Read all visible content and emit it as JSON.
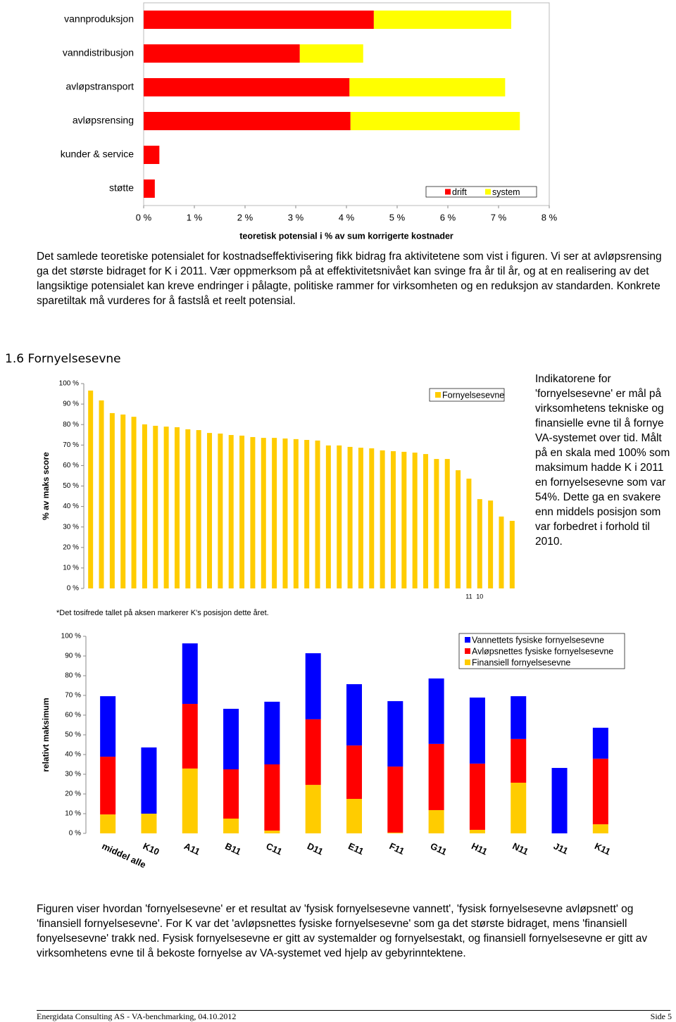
{
  "chart_data": [
    {
      "type": "hbar",
      "categories": [
        "vannproduksjon",
        "vanndistribusjon",
        "avløpstransport",
        "avløpsrensing",
        "kunder & service",
        "støtte"
      ],
      "series": [
        {
          "name": "drift",
          "color": "#ff0000",
          "values": [
            4.54,
            3.08,
            4.06,
            4.08,
            0.31,
            0.22
          ]
        },
        {
          "name": "system",
          "color": "#ffff00",
          "values": [
            2.71,
            1.25,
            3.07,
            3.34,
            0,
            0
          ]
        }
      ],
      "xlim": [
        0,
        8
      ],
      "xticks": [
        {
          "value": 0,
          "label": "0 %"
        },
        {
          "value": 1,
          "label": "1 %"
        },
        {
          "value": 2,
          "label": "2 %"
        },
        {
          "value": 3,
          "label": "3 %"
        },
        {
          "value": 4,
          "label": "4 %"
        },
        {
          "value": 5,
          "label": "5 %"
        },
        {
          "value": 6,
          "label": "6 %"
        },
        {
          "value": 7,
          "label": "7 %"
        },
        {
          "value": 8,
          "label": "8 %"
        }
      ],
      "xlabel": "teoretisk potensial i % av sum korrigerte kostnader",
      "legend": "lower right"
    },
    {
      "type": "bar",
      "categories": [
        null,
        null,
        null,
        null,
        null,
        null,
        null,
        null,
        null,
        null,
        null,
        null,
        null,
        null,
        null,
        null,
        null,
        null,
        null,
        null,
        null,
        null,
        null,
        null,
        null,
        null,
        null,
        null,
        null,
        null,
        null,
        null,
        null,
        null,
        null,
        "11",
        "10",
        null,
        null,
        null
      ],
      "series": [
        {
          "name": "Fornyelsesevne",
          "color": "#ffcc00",
          "values": [
            96.6,
            91.8,
            85.6,
            84.9,
            83.8,
            80.1,
            79.4,
            79.0,
            78.7,
            77.7,
            77.3,
            75.9,
            75.6,
            74.9,
            74.6,
            73.9,
            73.5,
            73.5,
            73.2,
            72.9,
            72.5,
            72.2,
            69.8,
            69.8,
            69.1,
            68.7,
            68.4,
            67.4,
            67.0,
            66.7,
            66.3,
            65.6,
            63.2,
            63.2,
            57.7,
            53.6,
            43.6,
            42.9,
            35.1,
            33.0
          ]
        }
      ],
      "ylim": [
        0,
        100
      ],
      "yticks": [
        {
          "value": 0,
          "label": "0 %"
        },
        {
          "value": 10,
          "label": "10 %"
        },
        {
          "value": 20,
          "label": "20 %"
        },
        {
          "value": 30,
          "label": "30 %"
        },
        {
          "value": 40,
          "label": "40 %"
        },
        {
          "value": 50,
          "label": "50 %"
        },
        {
          "value": 60,
          "label": "60 %"
        },
        {
          "value": 70,
          "label": "70 %"
        },
        {
          "value": 80,
          "label": "80 %"
        },
        {
          "value": 90,
          "label": "90 %"
        },
        {
          "value": 100,
          "label": "100 %"
        }
      ],
      "ylabel": "% av maks score",
      "note": "*Det tosifrede tallet på aksen markerer K's posisjon dette året.",
      "legend": "upper right"
    },
    {
      "type": "stackedbar",
      "categories": [
        "middel alle",
        "K10",
        "A11",
        "B11",
        "C11",
        "D11",
        "E11",
        "F11",
        "G11",
        "H11",
        "N11",
        "J11",
        "K11"
      ],
      "series": [
        {
          "name": "Finansiell fornyelsesevne",
          "color": "#ffcc00",
          "values": [
            9.6,
            10.0,
            32.9,
            7.5,
            1.4,
            24.6,
            17.5,
            0.4,
            11.8,
            1.8,
            25.7,
            0,
            4.6
          ]
        },
        {
          "name": "Avløpsnettes fysiske fornyelsesevne",
          "color": "#ff0000",
          "values": [
            29.3,
            0,
            32.8,
            25.0,
            33.6,
            33.3,
            27.1,
            33.5,
            33.6,
            33.6,
            22.2,
            0,
            33.3
          ]
        },
        {
          "name": "Vannettets fysiske fornyelsesevne",
          "color": "#0000ff",
          "values": [
            30.7,
            33.6,
            30.7,
            30.7,
            31.8,
            33.5,
            31.1,
            33.2,
            33.2,
            33.5,
            21.7,
            33.2,
            15.7
          ]
        }
      ],
      "ylim": [
        0,
        100
      ],
      "yticks": [
        {
          "value": 0,
          "label": "0 %"
        },
        {
          "value": 10,
          "label": "10 %"
        },
        {
          "value": 20,
          "label": "20 %"
        },
        {
          "value": 30,
          "label": "30 %"
        },
        {
          "value": 40,
          "label": "40 %"
        },
        {
          "value": 50,
          "label": "50 %"
        },
        {
          "value": 60,
          "label": "60 %"
        },
        {
          "value": 70,
          "label": "70 %"
        },
        {
          "value": 80,
          "label": "80 %"
        },
        {
          "value": 90,
          "label": "90 %"
        },
        {
          "value": 100,
          "label": "100 %"
        }
      ],
      "ylabel": "relativt maksimum",
      "legend": "upper right"
    }
  ],
  "paragraph_1": "Det samlede teoretiske potensialet for kostnadseffektivisering fikk bidrag fra aktivitetene som vist i figuren. Vi ser at avløpsrensing ga det største bidraget for K i 2011. Vær oppmerksom på at effektivitetsnivået kan svinge fra år til år, og at en realisering av det langsiktige potensialet kan kreve endringer i pålagte, politiske rammer for virksomheten og en reduksjon av standarden. Konkrete sparetiltak må vurderes for å fastslå et reelt potensial.",
  "section_heading": "1.6 Fornyelsesevne",
  "side_text": "Indikatorene for 'fornyelsesevne' er mål på virksomhetens tekniske og finansielle evne til å fornye VA-systemet over tid. Målt på en skala med 100% som maksimum hadde K i 2011 en fornyelsesevne som var 54%. Dette ga en svakere enn middels posisjon som var forbedret i forhold til 2010.",
  "paragraph_2": "Figuren viser hvordan 'fornyelsesevne' er et resultat av 'fysisk fornyelsesevne vannett', 'fysisk fornyelsesevne avløpsnett' og 'finansiell fornyelsesevne'. For K var det 'avløpsnettes fysiske fornyelsesevne' som ga det største bidraget, mens 'finansiell fonyelsesevne' trakk ned. Fysisk fornyelsesevne er gitt av systemalder og fornyelsestakt, og finansiell fornyelsesevne er gitt av virksomhetens evne til å bekoste fornyelse av VA-systemet ved hjelp av gebyrinntektene.",
  "footer": {
    "left": "Energidata Consulting AS -  VA-benchmarking, 04.10.2012",
    "right": "Side 5"
  }
}
